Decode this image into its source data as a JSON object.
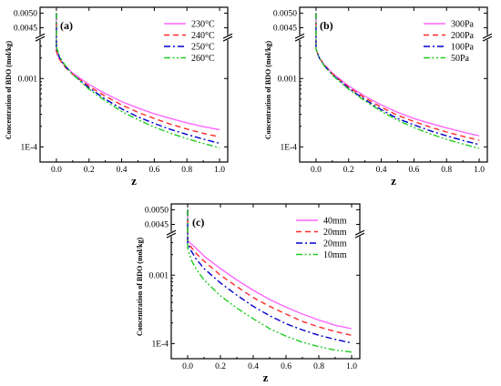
{
  "colors": {
    "pink": "#ff66ff",
    "red": "#ff2a2a",
    "blue": "#0000cc",
    "green": "#22cc22"
  },
  "chart_data": [
    {
      "type": "line",
      "panel_label": "(a)",
      "xlabel": "z",
      "ylabel": "Concentration of BDO (mol/kg)",
      "xlim": [
        -0.1,
        1.05
      ],
      "x_ticks": [
        "0.0",
        "0.2",
        "0.4",
        "0.6",
        "0.8",
        "1.0"
      ],
      "y_scale": "log (broken axis)",
      "y_ticks": [
        "0.0050",
        "0.0045",
        "0.001",
        "1E-4"
      ],
      "legend_position": "top-right",
      "x": [
        0.0,
        0.02,
        0.05,
        0.1,
        0.2,
        0.3,
        0.4,
        0.5,
        0.6,
        0.7,
        0.8,
        0.9,
        1.0
      ],
      "series": [
        {
          "name": "230°C",
          "color": "pink",
          "dash": "solid",
          "y0": 0.005,
          "values": [
            0.0025,
            0.0019,
            0.00155,
            0.0012,
            0.00082,
            0.0006,
            0.00046,
            0.00037,
            0.000305,
            0.00026,
            0.000225,
            0.000198,
            0.000178
          ]
        },
        {
          "name": "240°C",
          "color": "red",
          "dash": "dash",
          "y0": 0.005,
          "values": [
            0.0025,
            0.0019,
            0.0015,
            0.00115,
            0.00077,
            0.00055,
            0.00041,
            0.00032,
            0.00026,
            0.000215,
            0.000182,
            0.000158,
            0.00014
          ]
        },
        {
          "name": "250°C",
          "color": "blue",
          "dash": "dashdot",
          "y0": 0.005,
          "values": [
            0.0027,
            0.002,
            0.00155,
            0.00115,
            0.00073,
            0.0005,
            0.00036,
            0.000275,
            0.00022,
            0.00018,
            0.000152,
            0.00013,
            0.000113
          ]
        },
        {
          "name": "260°C",
          "color": "green",
          "dash": "dashdotdot",
          "y0": 0.005,
          "values": [
            0.0029,
            0.0021,
            0.0016,
            0.00115,
            0.0007,
            0.00047,
            0.00033,
            0.00025,
            0.000195,
            0.000158,
            0.000132,
            0.000112,
            9.7e-05
          ]
        }
      ]
    },
    {
      "type": "line",
      "panel_label": "(b)",
      "xlabel": "z",
      "ylabel": "Concentration of BDO (mol/kg)",
      "xlim": [
        -0.1,
        1.05
      ],
      "x_ticks": [
        "0.0",
        "0.2",
        "0.4",
        "0.6",
        "0.8",
        "1.0"
      ],
      "y_scale": "log (broken axis)",
      "y_ticks": [
        "0.0050",
        "0.0045",
        "0.001",
        "1E-4"
      ],
      "legend_position": "top-right",
      "x": [
        0.0,
        0.02,
        0.05,
        0.1,
        0.2,
        0.3,
        0.4,
        0.5,
        0.6,
        0.7,
        0.8,
        0.9,
        1.0
      ],
      "series": [
        {
          "name": "300Pa",
          "color": "pink",
          "dash": "solid",
          "y0": 0.005,
          "values": [
            0.0027,
            0.002,
            0.0016,
            0.0012,
            0.00078,
            0.00055,
            0.00041,
            0.00032,
            0.00026,
            0.00022,
            0.00019,
            0.000165,
            0.000145
          ]
        },
        {
          "name": "200Pa",
          "color": "red",
          "dash": "dash",
          "y0": 0.005,
          "values": [
            0.0027,
            0.002,
            0.00158,
            0.00117,
            0.00075,
            0.00052,
            0.00038,
            0.00029,
            0.000235,
            0.000195,
            0.000165,
            0.000143,
            0.000125
          ]
        },
        {
          "name": "100Pa",
          "color": "blue",
          "dash": "dashdot",
          "y0": 0.005,
          "values": [
            0.0027,
            0.002,
            0.00155,
            0.00114,
            0.00072,
            0.00049,
            0.00035,
            0.00026,
            0.00021,
            0.000172,
            0.000145,
            0.000124,
            0.000108
          ]
        },
        {
          "name": "50Pa",
          "color": "green",
          "dash": "dashdotdot",
          "y0": 0.005,
          "values": [
            0.0027,
            0.002,
            0.00153,
            0.00112,
            0.0007,
            0.00047,
            0.00033,
            0.000245,
            0.000192,
            0.000155,
            0.000129,
            0.00011,
            9.5e-05
          ]
        }
      ]
    },
    {
      "type": "line",
      "panel_label": "(c)",
      "xlabel": "z",
      "ylabel": "Concentration of BDO (mol/kg)",
      "xlim": [
        -0.1,
        1.05
      ],
      "x_ticks": [
        "0.0",
        "0.2",
        "0.4",
        "0.6",
        "0.8",
        "1.0"
      ],
      "y_scale": "log (broken axis)",
      "y_ticks": [
        "0.0050",
        "0.0045",
        "0.001",
        "1E-4"
      ],
      "legend_position": "top-right",
      "x": [
        0.0,
        0.02,
        0.05,
        0.1,
        0.2,
        0.3,
        0.4,
        0.5,
        0.6,
        0.7,
        0.8,
        0.9,
        1.0
      ],
      "series": [
        {
          "name": "40mm",
          "color": "pink",
          "dash": "solid",
          "y0": 0.005,
          "values": [
            0.0032,
            0.0029,
            0.0025,
            0.0019,
            0.00125,
            0.00085,
            0.0006,
            0.00044,
            0.00034,
            0.00027,
            0.00022,
            0.000185,
            0.000165
          ]
        },
        {
          "name": "20mm",
          "color": "red",
          "dash": "dash",
          "y0": 0.005,
          "values": [
            0.0031,
            0.0026,
            0.0021,
            0.0016,
            0.001,
            0.00068,
            0.00047,
            0.00035,
            0.00027,
            0.00021,
            0.000175,
            0.00015,
            0.000132
          ]
        },
        {
          "name": "20mm",
          "color": "blue",
          "dash": "dashdot",
          "y0": 0.005,
          "values": [
            0.0029,
            0.0023,
            0.00175,
            0.00125,
            0.00077,
            0.00051,
            0.00035,
            0.000255,
            0.000195,
            0.000158,
            0.000132,
            0.000115,
            0.000102
          ]
        },
        {
          "name": "10mm",
          "color": "green",
          "dash": "dashdotdot",
          "y0": 0.005,
          "values": [
            0.0025,
            0.0017,
            0.00125,
            0.00085,
            0.0005,
            0.00033,
            0.00023,
            0.000165,
            0.000128,
            0.000105,
            9e-05,
            8e-05,
            7.5e-05
          ]
        }
      ]
    }
  ]
}
